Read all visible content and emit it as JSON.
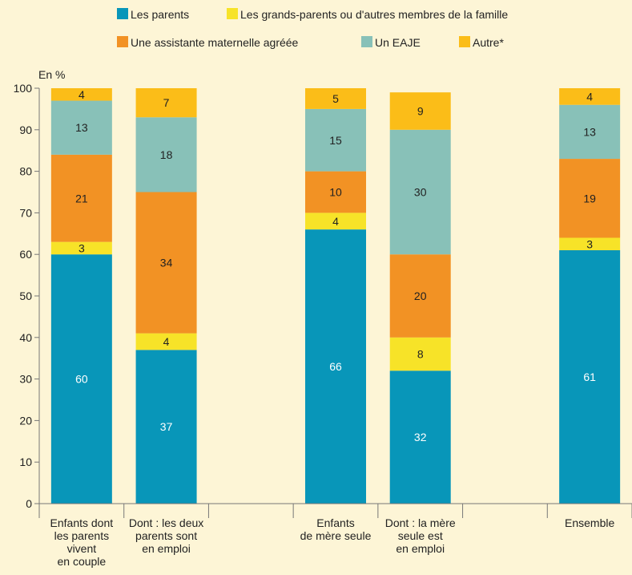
{
  "chart_data": {
    "type": "bar",
    "stacked": true,
    "ylabel": "En %",
    "ylim": [
      0,
      100
    ],
    "yticks": [
      0,
      10,
      20,
      30,
      40,
      50,
      60,
      70,
      80,
      90,
      100
    ],
    "grid": false,
    "legend_position": "top",
    "categories": [
      [
        "Enfants dont",
        "les parents",
        "vivent",
        "en couple"
      ],
      [
        "Dont : les deux",
        "parents sont",
        "en emploi"
      ],
      "",
      [
        "Enfants",
        "de mère seule"
      ],
      [
        "Dont : la mère",
        "seule est",
        "en emploi"
      ],
      "",
      [
        "Ensemble"
      ]
    ],
    "series": [
      {
        "name": "Les parents",
        "color": "#0896b9",
        "label_color": "#ffffff",
        "values": [
          60,
          37,
          null,
          66,
          32,
          null,
          61
        ]
      },
      {
        "name": "Les grands-parents ou d'autres membres de la famille",
        "color": "#f7e328",
        "label_color": "#222222",
        "values": [
          3,
          4,
          null,
          4,
          8,
          null,
          3
        ]
      },
      {
        "name": "Une assistante maternelle agréée",
        "color": "#f29224",
        "label_color": "#222222",
        "values": [
          21,
          34,
          null,
          10,
          20,
          null,
          19
        ]
      },
      {
        "name": "Un EAJE",
        "color": "#88c1b8",
        "label_color": "#222222",
        "values": [
          13,
          18,
          null,
          15,
          30,
          null,
          13
        ]
      },
      {
        "name": "Autre*",
        "color": "#fbbd18",
        "label_color": "#222222",
        "values": [
          4,
          7,
          null,
          5,
          9,
          null,
          4
        ]
      }
    ]
  }
}
